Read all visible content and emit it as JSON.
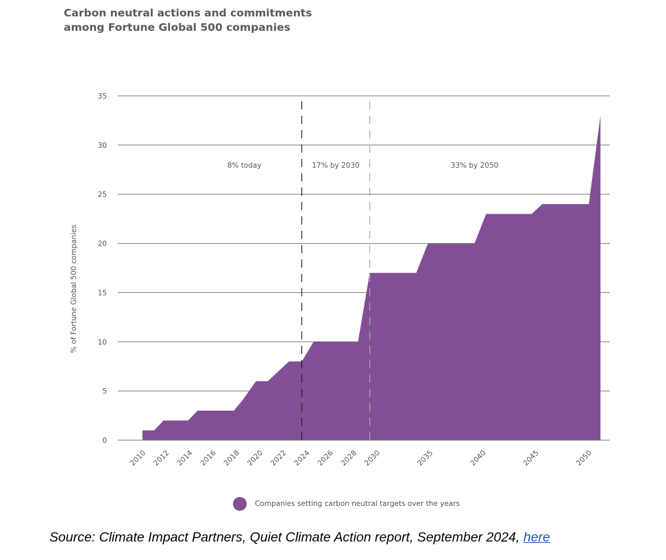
{
  "chart_data": {
    "type": "area",
    "title_line1": "Carbon neutral actions and commitments",
    "title_line2": "among Fortune Global 500 companies",
    "ylabel": "% of Fortune Global 500  companies",
    "ylim": [
      0,
      35
    ],
    "yticks": [
      0,
      5,
      10,
      15,
      20,
      25,
      30,
      35
    ],
    "xticks": [
      2010,
      2012,
      2014,
      2016,
      2018,
      2020,
      2022,
      2024,
      2026,
      2028,
      2030,
      2035,
      2040,
      2045,
      2050
    ],
    "grid": true,
    "series": [
      {
        "name": "Companies setting carbon neutral targets over the years",
        "color": "#824e95",
        "points": [
          [
            2009.7,
            0
          ],
          [
            2009.7,
            1
          ],
          [
            2010.7,
            1
          ],
          [
            2011.5,
            2
          ],
          [
            2013.6,
            2
          ],
          [
            2014.4,
            3
          ],
          [
            2017.5,
            3
          ],
          [
            2018.2,
            4
          ],
          [
            2019.4,
            6
          ],
          [
            2020.4,
            6
          ],
          [
            2022.2,
            8
          ],
          [
            2023.3,
            8
          ],
          [
            2024.3,
            10
          ],
          [
            2028.1,
            10
          ],
          [
            2029.1,
            17
          ],
          [
            2033.4,
            17
          ],
          [
            2034.5,
            20
          ],
          [
            2038.9,
            20
          ],
          [
            2040,
            23
          ],
          [
            2044.3,
            23
          ],
          [
            2045.3,
            24
          ],
          [
            2049.7,
            24
          ],
          [
            2050.8,
            33
          ],
          [
            2050.8,
            0
          ]
        ]
      }
    ],
    "markers": [
      {
        "year": 2023.3,
        "label": "8% today",
        "style": "dark"
      },
      {
        "year": 2029.1,
        "label": "17% by 2030",
        "style": "light"
      }
    ],
    "annotations": [
      {
        "year": 2018.4,
        "label": "8% today"
      },
      {
        "year": 2026.2,
        "label": "17% by 2030"
      },
      {
        "year": 2038.9,
        "label": "33% by 2050"
      }
    ],
    "legend": {
      "label": "Companies setting carbon neutral targets over the years",
      "placement": "bottom"
    }
  },
  "source": {
    "text": "Source: Climate Impact Partners, Quiet Climate Action report, September 2024, ",
    "link": "here"
  }
}
